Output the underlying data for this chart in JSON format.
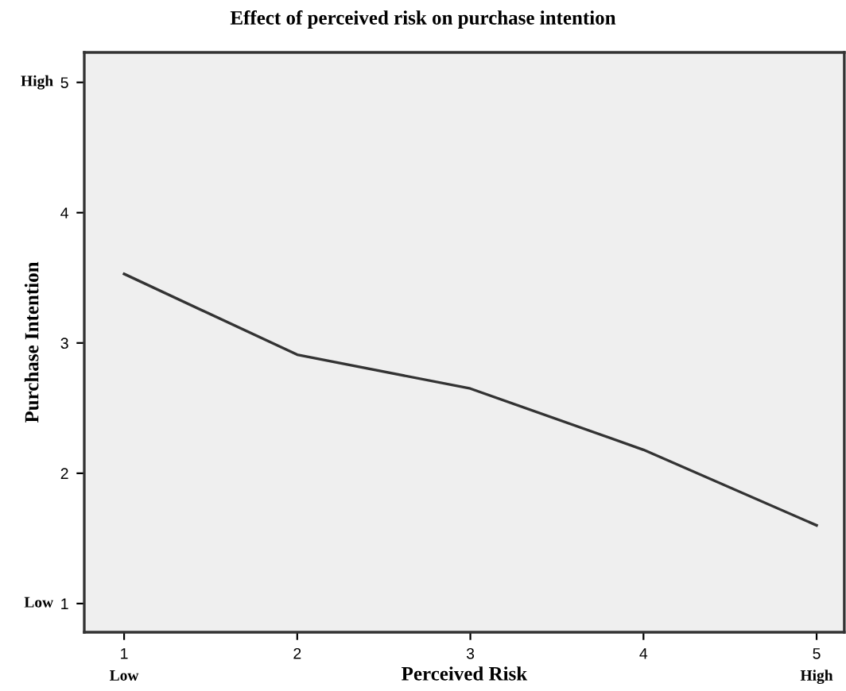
{
  "chart_data": {
    "type": "line",
    "title": "Effect of perceived risk on purchase intention",
    "xlabel": "Perceived Risk",
    "ylabel": "Purchase Intention",
    "x": [
      1,
      2,
      3,
      4,
      5
    ],
    "series": [
      {
        "color": "#333333",
        "values": [
          3.53,
          2.91,
          2.65,
          2.18,
          1.6
        ]
      }
    ],
    "xlim": [
      0.77,
      5.16
    ],
    "ylim": [
      0.78,
      5.23
    ],
    "xticks": [
      1,
      2,
      3,
      4,
      5
    ],
    "yticks": [
      1,
      2,
      3,
      4,
      5
    ],
    "annotations": [
      "Low",
      "High",
      "Low",
      "High"
    ],
    "grid": false,
    "legend": false,
    "marker": "none",
    "line_style": "solid"
  }
}
